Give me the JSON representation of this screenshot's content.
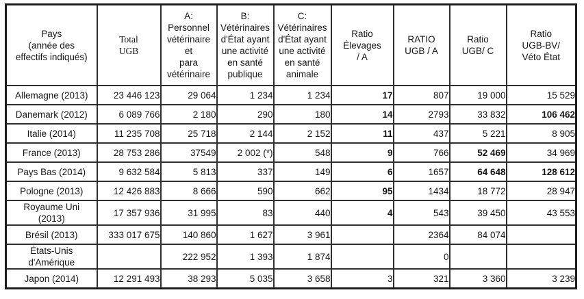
{
  "table": {
    "columns": [
      {
        "key": "pays",
        "serif": false,
        "header_lines": [
          "Pays",
          "(année des",
          "effectifs indiqués)"
        ]
      },
      {
        "key": "total_ugb",
        "serif": true,
        "header_lines": [
          "Total",
          "UGB"
        ]
      },
      {
        "key": "a",
        "serif": false,
        "header_lines": [
          "A:",
          "Personnel",
          "vétérinaire et",
          "para",
          "vétérinaire"
        ]
      },
      {
        "key": "b",
        "serif": false,
        "header_lines": [
          "B:",
          "Vétérinaires",
          "d'État ayant",
          "une activité",
          "en santé",
          "publique"
        ]
      },
      {
        "key": "c",
        "serif": false,
        "header_lines": [
          "C:",
          "Vétérinaires",
          "d'État ayant",
          "une activité",
          "en santé",
          "animale"
        ]
      },
      {
        "key": "ratio_elevages_a",
        "serif": false,
        "header_lines": [
          "Ratio",
          "Élevages",
          "/ A"
        ]
      },
      {
        "key": "ratio_ugb_a",
        "serif": false,
        "header_lines": [
          "RATIO",
          "UGB / A"
        ]
      },
      {
        "key": "ratio_ugb_c",
        "serif": false,
        "header_lines": [
          "Ratio",
          "UGB/ C"
        ]
      },
      {
        "key": "ratio_ugb_bv",
        "serif": false,
        "header_lines": [
          "Ratio",
          "UGB-BV/",
          "Véto État"
        ]
      }
    ],
    "rows": [
      {
        "pays_lines": [
          "Allemagne (2013)"
        ],
        "cells": [
          {
            "t": "23 446 123",
            "b": false
          },
          {
            "t": "29 064",
            "b": false
          },
          {
            "t": "1 234",
            "b": false
          },
          {
            "t": "1 234",
            "b": false
          },
          {
            "t": "17",
            "b": true
          },
          {
            "t": "807",
            "b": false
          },
          {
            "t": "19 000",
            "b": false
          },
          {
            "t": "15 529",
            "b": false
          }
        ]
      },
      {
        "pays_lines": [
          "Danemark (2012)"
        ],
        "cells": [
          {
            "t": "6 089 766",
            "b": false
          },
          {
            "t": "2 180",
            "b": false
          },
          {
            "t": "290",
            "b": false
          },
          {
            "t": "180",
            "b": false
          },
          {
            "t": "14",
            "b": true
          },
          {
            "t": "2793",
            "b": false
          },
          {
            "t": "33 832",
            "b": false
          },
          {
            "t": "106 462",
            "b": true
          }
        ]
      },
      {
        "pays_lines": [
          "Italie (2014)"
        ],
        "cells": [
          {
            "t": "11 235 708",
            "b": false
          },
          {
            "t": "25 718",
            "b": false
          },
          {
            "t": "2 144",
            "b": false
          },
          {
            "t": "2 152",
            "b": false
          },
          {
            "t": "11",
            "b": true
          },
          {
            "t": "437",
            "b": false
          },
          {
            "t": "5 221",
            "b": false
          },
          {
            "t": "8 905",
            "b": false
          }
        ]
      },
      {
        "pays_lines": [
          "France (2013)"
        ],
        "cells": [
          {
            "t": "28 753 286",
            "b": false
          },
          {
            "t": "37549",
            "b": false
          },
          {
            "t": "2 002 (*)",
            "b": false
          },
          {
            "t": "548",
            "b": false
          },
          {
            "t": "9",
            "b": true
          },
          {
            "t": "766",
            "b": false
          },
          {
            "t": "52 469",
            "b": true
          },
          {
            "t": "34 969",
            "b": false
          }
        ]
      },
      {
        "pays_lines": [
          "Pays Bas (2014)"
        ],
        "cells": [
          {
            "t": "9 632 584",
            "b": false
          },
          {
            "t": "5 813",
            "b": false
          },
          {
            "t": "337",
            "b": false
          },
          {
            "t": "149",
            "b": false
          },
          {
            "t": "6",
            "b": true
          },
          {
            "t": "1657",
            "b": false
          },
          {
            "t": "64 648",
            "b": true
          },
          {
            "t": "128 612",
            "b": true
          }
        ]
      },
      {
        "pays_lines": [
          "Pologne (2013)"
        ],
        "cells": [
          {
            "t": "12 426 883",
            "b": false
          },
          {
            "t": "8 666",
            "b": false
          },
          {
            "t": "590",
            "b": false
          },
          {
            "t": "662",
            "b": false
          },
          {
            "t": "95",
            "b": true
          },
          {
            "t": "1434",
            "b": false
          },
          {
            "t": "18 772",
            "b": false
          },
          {
            "t": "28 947",
            "b": false
          }
        ]
      },
      {
        "pays_lines": [
          "Royaume Uni",
          "(2013)"
        ],
        "cells": [
          {
            "t": "17 357 936",
            "b": false
          },
          {
            "t": "31 995",
            "b": false
          },
          {
            "t": "83",
            "b": false
          },
          {
            "t": "440",
            "b": false
          },
          {
            "t": "4",
            "b": true
          },
          {
            "t": "543",
            "b": false
          },
          {
            "t": "39 450",
            "b": false
          },
          {
            "t": "43 553",
            "b": false
          }
        ]
      },
      {
        "pays_lines": [
          "Brésil (2013)"
        ],
        "cells": [
          {
            "t": "333 017 675",
            "b": false
          },
          {
            "t": "140 860",
            "b": false
          },
          {
            "t": "1 627",
            "b": false
          },
          {
            "t": "3 961",
            "b": false
          },
          {
            "t": "",
            "b": false
          },
          {
            "t": "2364",
            "b": false
          },
          {
            "t": "84 074",
            "b": false
          },
          {
            "t": "",
            "b": false
          }
        ]
      },
      {
        "pays_lines": [
          "États-Unis",
          "d'Amérique"
        ],
        "cells": [
          {
            "t": "",
            "b": false
          },
          {
            "t": "222 952",
            "b": false
          },
          {
            "t": "1 393",
            "b": false
          },
          {
            "t": "1 874",
            "b": false
          },
          {
            "t": "",
            "b": false
          },
          {
            "t": "0",
            "b": false
          },
          {
            "t": "",
            "b": false
          },
          {
            "t": "",
            "b": false
          }
        ]
      },
      {
        "pays_lines": [
          "Japon (2014)"
        ],
        "cells": [
          {
            "t": "12 291 493",
            "b": false
          },
          {
            "t": "38 293",
            "b": false
          },
          {
            "t": "5 035",
            "b": false
          },
          {
            "t": "3 658",
            "b": false
          },
          {
            "t": "3",
            "b": false
          },
          {
            "t": "321",
            "b": false
          },
          {
            "t": "3 360",
            "b": false
          },
          {
            "t": "3 239",
            "b": false
          }
        ]
      }
    ]
  }
}
